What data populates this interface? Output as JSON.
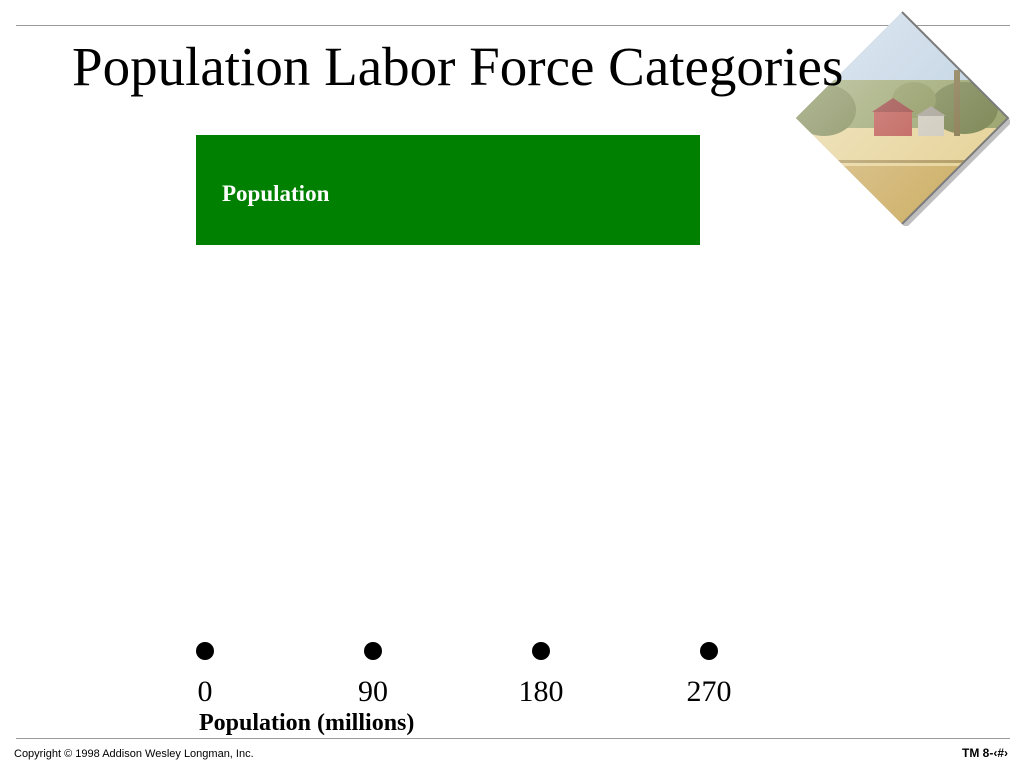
{
  "slide": {
    "title": "Population Labor Force Categories"
  },
  "chart_data": {
    "type": "bar",
    "orientation": "horizontal",
    "categories": [
      "Population"
    ],
    "values": [
      270
    ],
    "bar_color": "#008000",
    "bar_label_color": "#ffffff",
    "xlabel": "Population (millions)",
    "xlim": [
      0,
      270
    ],
    "xticks": [
      0,
      90,
      180,
      270
    ],
    "xtick_labels": [
      "0",
      "90",
      "180",
      "270"
    ],
    "grid": false,
    "legend": "none"
  },
  "decor": {
    "image": "farm-landscape-image"
  },
  "footer": {
    "copyright": "Copyright © 1998 Addison Wesley Longman, Inc.",
    "page_label": "TM 8-‹#›"
  }
}
